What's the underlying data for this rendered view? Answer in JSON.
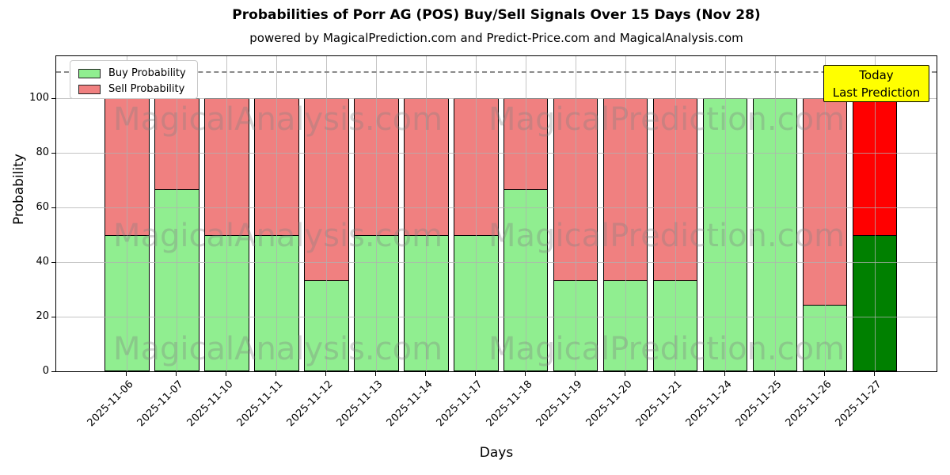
{
  "chart_data": {
    "type": "bar",
    "stacked": true,
    "title": "Probabilities of Porr AG (POS) Buy/Sell Signals Over 15 Days (Nov 28)",
    "subtitle": "powered by MagicalPrediction.com and Predict-Price.com and MagicalAnalysis.com",
    "xlabel": "Days",
    "ylabel": "Probability",
    "categories": [
      "2025-11-06",
      "2025-11-07",
      "2025-11-10",
      "2025-11-11",
      "2025-11-12",
      "2025-11-13",
      "2025-11-14",
      "2025-11-17",
      "2025-11-18",
      "2025-11-19",
      "2025-11-20",
      "2025-11-21",
      "2025-11-24",
      "2025-11-25",
      "2025-11-26",
      "2025-11-27"
    ],
    "series": [
      {
        "name": "Buy Probability",
        "color": "#90ee90",
        "values": [
          50,
          66.67,
          50,
          50,
          33.33,
          50,
          50,
          50,
          66.67,
          33.33,
          33.33,
          33.33,
          100,
          100,
          24.5,
          50
        ]
      },
      {
        "name": "Sell Probability",
        "color": "#f08080",
        "values": [
          50,
          33.33,
          50,
          50,
          66.67,
          50,
          50,
          50,
          33.33,
          66.67,
          66.67,
          66.67,
          0,
          0,
          75.5,
          50
        ]
      }
    ],
    "highlight": {
      "index": 15,
      "buy_color": "#008000",
      "sell_color": "#ff0000",
      "label": "Today / Last Prediction"
    },
    "yticks": [
      0,
      20,
      40,
      60,
      80,
      100
    ],
    "ylim": [
      0,
      115.5
    ],
    "dashed_line_y": 110,
    "grid": true,
    "legend_position": "upper left"
  },
  "legend": {
    "items": [
      {
        "label": "Buy Probability",
        "color": "#90ee90"
      },
      {
        "label": "Sell Probability",
        "color": "#f08080"
      }
    ]
  },
  "annotation": {
    "lines": [
      "Today",
      "Last Prediction"
    ],
    "bg_color": "#ffff00"
  },
  "watermarks": {
    "left_text": "MagicalAnalysis.com",
    "right_text": "MagicalPrediction.com",
    "rows": 3
  }
}
